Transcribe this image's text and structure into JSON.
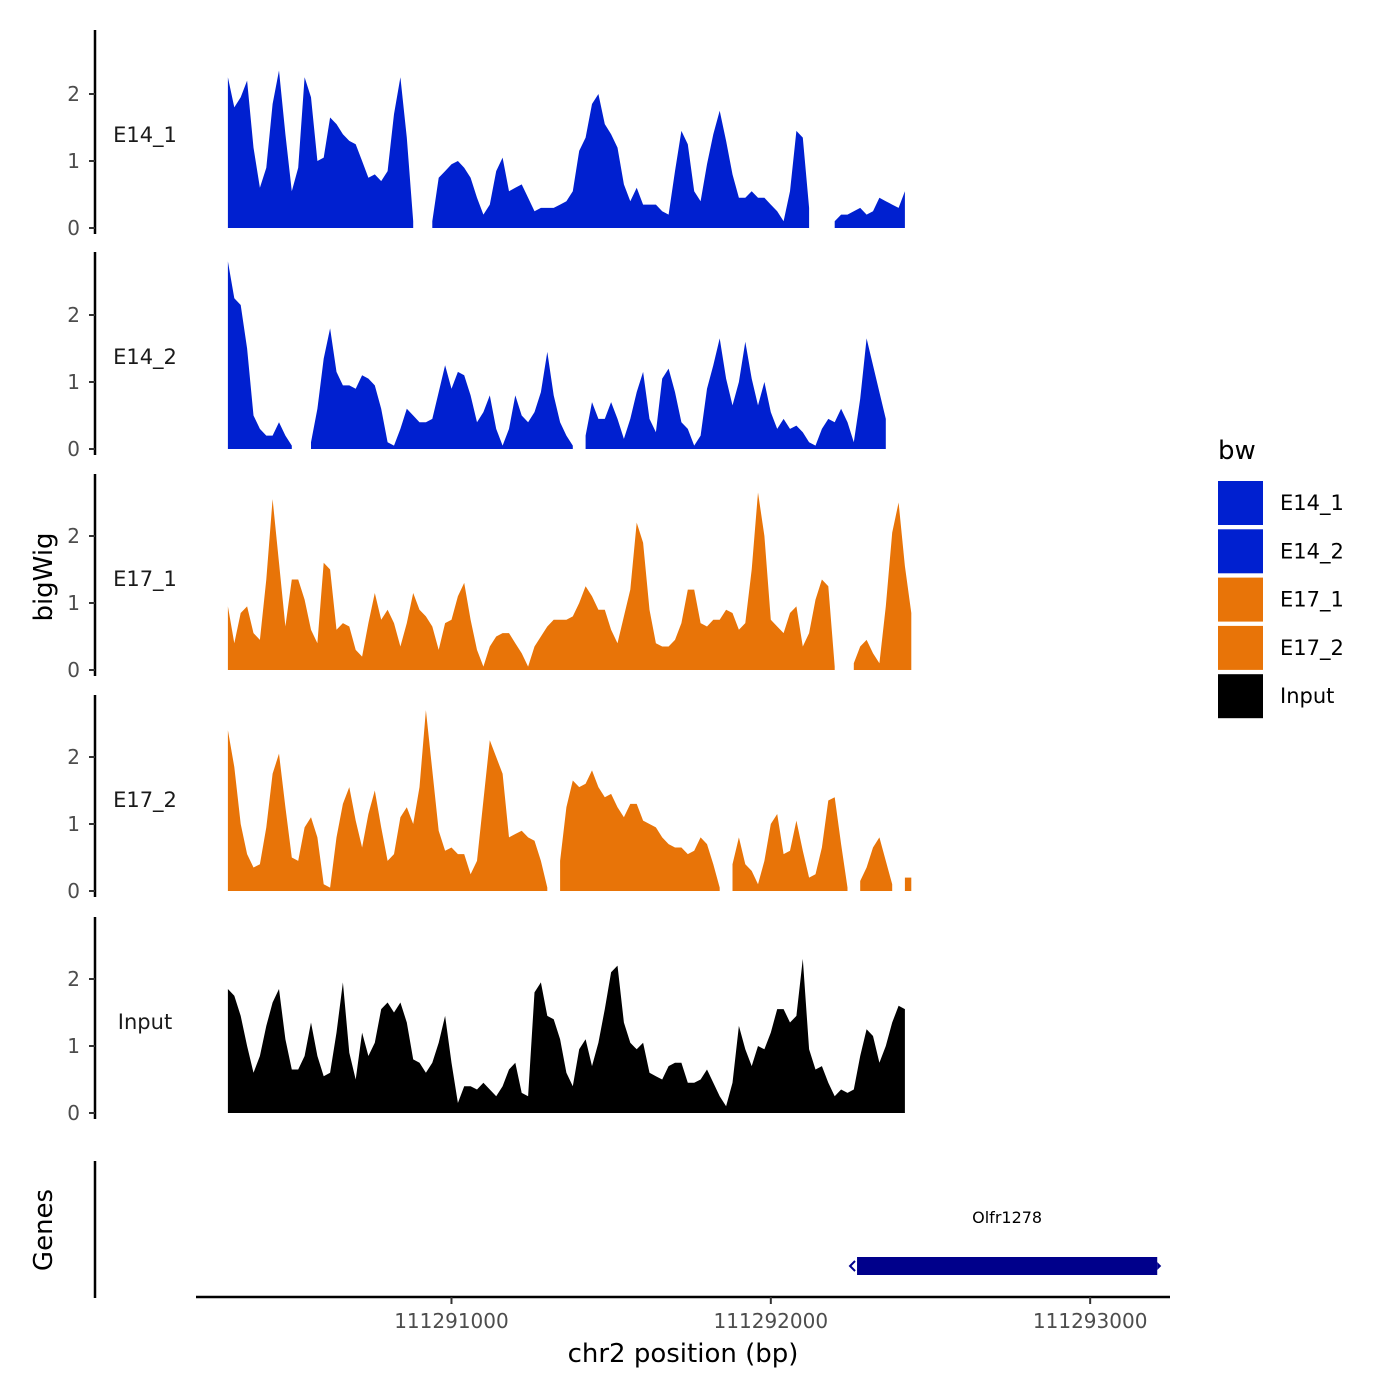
{
  "chart_data": {
    "type": "area",
    "y_title": "bigWig",
    "x_title": "chr2 position (bp)",
    "genes_title": "Genes",
    "x_range": [
      111290200,
      111293250
    ],
    "x_ticks": [
      111291000,
      111292000,
      111293000
    ],
    "x_tick_labels": [
      "111291000",
      "111292000",
      "111293000"
    ],
    "y_range": [
      0,
      2.9
    ],
    "y_ticks": [
      0,
      1,
      2
    ],
    "y_tick_labels": [
      "0",
      "1",
      "2"
    ],
    "legend_title": "bw",
    "legend": [
      {
        "name": "E14_1",
        "color": "#0020D0"
      },
      {
        "name": "E14_2",
        "color": "#0020D0"
      },
      {
        "name": "E17_1",
        "color": "#E87408"
      },
      {
        "name": "E17_2",
        "color": "#E87408"
      },
      {
        "name": "Input",
        "color": "#000000"
      }
    ],
    "x_start": 111290300,
    "x_step": 20,
    "series": [
      {
        "name": "E14_1",
        "color": "#0020D0",
        "values": [
          2.25,
          1.8,
          1.95,
          2.2,
          1.2,
          0.6,
          0.9,
          1.85,
          2.35,
          1.4,
          0.55,
          0.9,
          2.25,
          1.95,
          1.0,
          1.05,
          1.65,
          1.55,
          1.4,
          1.3,
          1.25,
          1.0,
          0.75,
          0.8,
          0.7,
          0.85,
          1.7,
          2.25,
          1.35,
          0.1,
          null,
          null,
          0.1,
          0.75,
          0.85,
          0.95,
          1.0,
          0.9,
          0.75,
          0.45,
          0.2,
          0.35,
          0.85,
          1.05,
          0.55,
          0.6,
          0.65,
          0.45,
          0.25,
          0.3,
          0.3,
          0.3,
          0.35,
          0.4,
          0.55,
          1.15,
          1.35,
          1.85,
          2.0,
          1.55,
          1.4,
          1.2,
          0.65,
          0.4,
          0.6,
          0.35,
          0.35,
          0.35,
          0.25,
          0.2,
          0.85,
          1.45,
          1.25,
          0.55,
          0.4,
          0.95,
          1.4,
          1.75,
          1.3,
          0.8,
          0.45,
          0.45,
          0.55,
          0.45,
          0.45,
          0.35,
          0.25,
          0.1,
          0.55,
          1.45,
          1.35,
          0.3,
          null,
          null,
          null,
          0.1,
          0.2,
          0.2,
          0.25,
          0.3,
          0.2,
          0.25,
          0.45,
          0.4,
          0.35,
          0.3,
          0.55
        ]
      },
      {
        "name": "E14_2",
        "color": "#0020D0",
        "values": [
          2.8,
          2.25,
          2.15,
          1.5,
          0.5,
          0.3,
          0.2,
          0.2,
          0.4,
          0.2,
          0.05,
          null,
          null,
          0.1,
          0.6,
          1.35,
          1.8,
          1.15,
          0.95,
          0.95,
          0.9,
          1.1,
          1.05,
          0.95,
          0.6,
          0.1,
          0.05,
          0.3,
          0.6,
          0.5,
          0.4,
          0.4,
          0.45,
          0.85,
          1.25,
          0.9,
          1.15,
          1.1,
          0.8,
          0.4,
          0.55,
          0.8,
          0.3,
          0.05,
          0.3,
          0.8,
          0.5,
          0.4,
          0.55,
          0.85,
          1.45,
          0.8,
          0.4,
          0.2,
          0.05,
          null,
          0.2,
          0.7,
          0.45,
          0.45,
          0.7,
          0.45,
          0.15,
          0.45,
          0.85,
          1.15,
          0.45,
          0.25,
          1.05,
          1.2,
          0.85,
          0.4,
          0.3,
          0.05,
          0.2,
          0.9,
          1.25,
          1.65,
          1.05,
          0.65,
          1.0,
          1.6,
          1.05,
          0.65,
          1.0,
          0.55,
          0.3,
          0.45,
          0.3,
          0.35,
          0.25,
          0.1,
          0.05,
          0.3,
          0.45,
          0.4,
          0.6,
          0.4,
          0.1,
          0.75,
          1.65,
          1.25,
          0.85,
          0.45
        ]
      },
      {
        "name": "E17_1",
        "color": "#E87408",
        "values": [
          0.95,
          0.4,
          0.85,
          0.95,
          0.55,
          0.45,
          1.35,
          2.55,
          1.6,
          0.65,
          1.35,
          1.35,
          1.05,
          0.6,
          0.4,
          1.6,
          1.5,
          0.6,
          0.7,
          0.65,
          0.3,
          0.2,
          0.7,
          1.15,
          0.75,
          0.9,
          0.7,
          0.35,
          0.7,
          1.15,
          0.9,
          0.8,
          0.65,
          0.3,
          0.7,
          0.75,
          1.1,
          1.3,
          0.75,
          0.3,
          0.05,
          0.35,
          0.5,
          0.55,
          0.55,
          0.4,
          0.25,
          0.05,
          0.35,
          0.5,
          0.65,
          0.75,
          0.75,
          0.75,
          0.8,
          1.0,
          1.25,
          1.1,
          0.9,
          0.9,
          0.6,
          0.4,
          0.8,
          1.2,
          2.2,
          1.9,
          0.9,
          0.4,
          0.35,
          0.35,
          0.45,
          0.7,
          1.2,
          1.2,
          0.7,
          0.65,
          0.75,
          0.75,
          0.9,
          0.85,
          0.6,
          0.7,
          1.5,
          2.65,
          2.0,
          0.75,
          0.65,
          0.55,
          0.85,
          0.95,
          0.35,
          0.55,
          1.05,
          1.35,
          1.25,
          0.05,
          null,
          null,
          0.1,
          0.35,
          0.45,
          0.25,
          0.1,
          0.95,
          2.05,
          2.5,
          1.55,
          0.85
        ]
      },
      {
        "name": "E17_2",
        "color": "#E87408",
        "values": [
          2.4,
          1.85,
          1.0,
          0.55,
          0.35,
          0.4,
          0.95,
          1.75,
          2.05,
          1.25,
          0.5,
          0.45,
          0.95,
          1.1,
          0.8,
          0.1,
          0.05,
          0.8,
          1.3,
          1.55,
          1.05,
          0.65,
          1.15,
          1.5,
          0.95,
          0.45,
          0.55,
          1.1,
          1.25,
          1.0,
          1.55,
          2.7,
          1.8,
          0.9,
          0.6,
          0.65,
          0.55,
          0.55,
          0.25,
          0.45,
          1.35,
          2.25,
          2.0,
          1.75,
          0.8,
          0.85,
          0.9,
          0.8,
          0.75,
          0.45,
          0.05,
          null,
          0.45,
          1.25,
          1.65,
          1.55,
          1.6,
          1.8,
          1.55,
          1.4,
          1.45,
          1.25,
          1.1,
          1.3,
          1.3,
          1.05,
          1.0,
          0.95,
          0.8,
          0.7,
          0.65,
          0.65,
          0.55,
          0.6,
          0.8,
          0.7,
          0.4,
          0.05,
          null,
          0.4,
          0.8,
          0.4,
          0.3,
          0.1,
          0.45,
          1.0,
          1.15,
          0.55,
          0.6,
          1.05,
          0.6,
          0.2,
          0.25,
          0.65,
          1.35,
          1.4,
          0.7,
          0.05,
          null,
          0.15,
          0.35,
          0.65,
          0.8,
          0.45,
          0.1,
          null,
          0.2,
          0.2
        ]
      },
      {
        "name": "Input",
        "color": "#000000",
        "values": [
          1.85,
          1.75,
          1.45,
          1.0,
          0.6,
          0.85,
          1.3,
          1.65,
          1.85,
          1.1,
          0.65,
          0.65,
          0.85,
          1.35,
          0.85,
          0.55,
          0.6,
          1.2,
          1.95,
          0.9,
          0.5,
          1.2,
          0.85,
          1.05,
          1.55,
          1.65,
          1.5,
          1.65,
          1.35,
          0.8,
          0.75,
          0.6,
          0.75,
          1.05,
          1.45,
          0.75,
          0.15,
          0.4,
          0.4,
          0.35,
          0.45,
          0.35,
          0.25,
          0.4,
          0.65,
          0.75,
          0.3,
          0.25,
          1.8,
          1.95,
          1.45,
          1.4,
          1.1,
          0.6,
          0.4,
          0.95,
          1.1,
          0.7,
          1.05,
          1.55,
          2.1,
          2.2,
          1.35,
          1.05,
          0.95,
          1.05,
          0.6,
          0.55,
          0.5,
          0.7,
          0.75,
          0.75,
          0.45,
          0.45,
          0.5,
          0.65,
          0.45,
          0.25,
          0.1,
          0.45,
          1.3,
          0.95,
          0.7,
          1.0,
          0.95,
          1.2,
          1.55,
          1.55,
          1.35,
          1.45,
          2.3,
          0.95,
          0.65,
          0.7,
          0.45,
          0.25,
          0.35,
          0.3,
          0.35,
          0.85,
          1.25,
          1.15,
          0.75,
          1.0,
          1.35,
          1.6,
          1.55
        ]
      }
    ],
    "genes": [
      {
        "name": "Olfr1278",
        "start": 111292270,
        "end": 111293210,
        "strand": "-",
        "color": "#00008B"
      }
    ]
  }
}
